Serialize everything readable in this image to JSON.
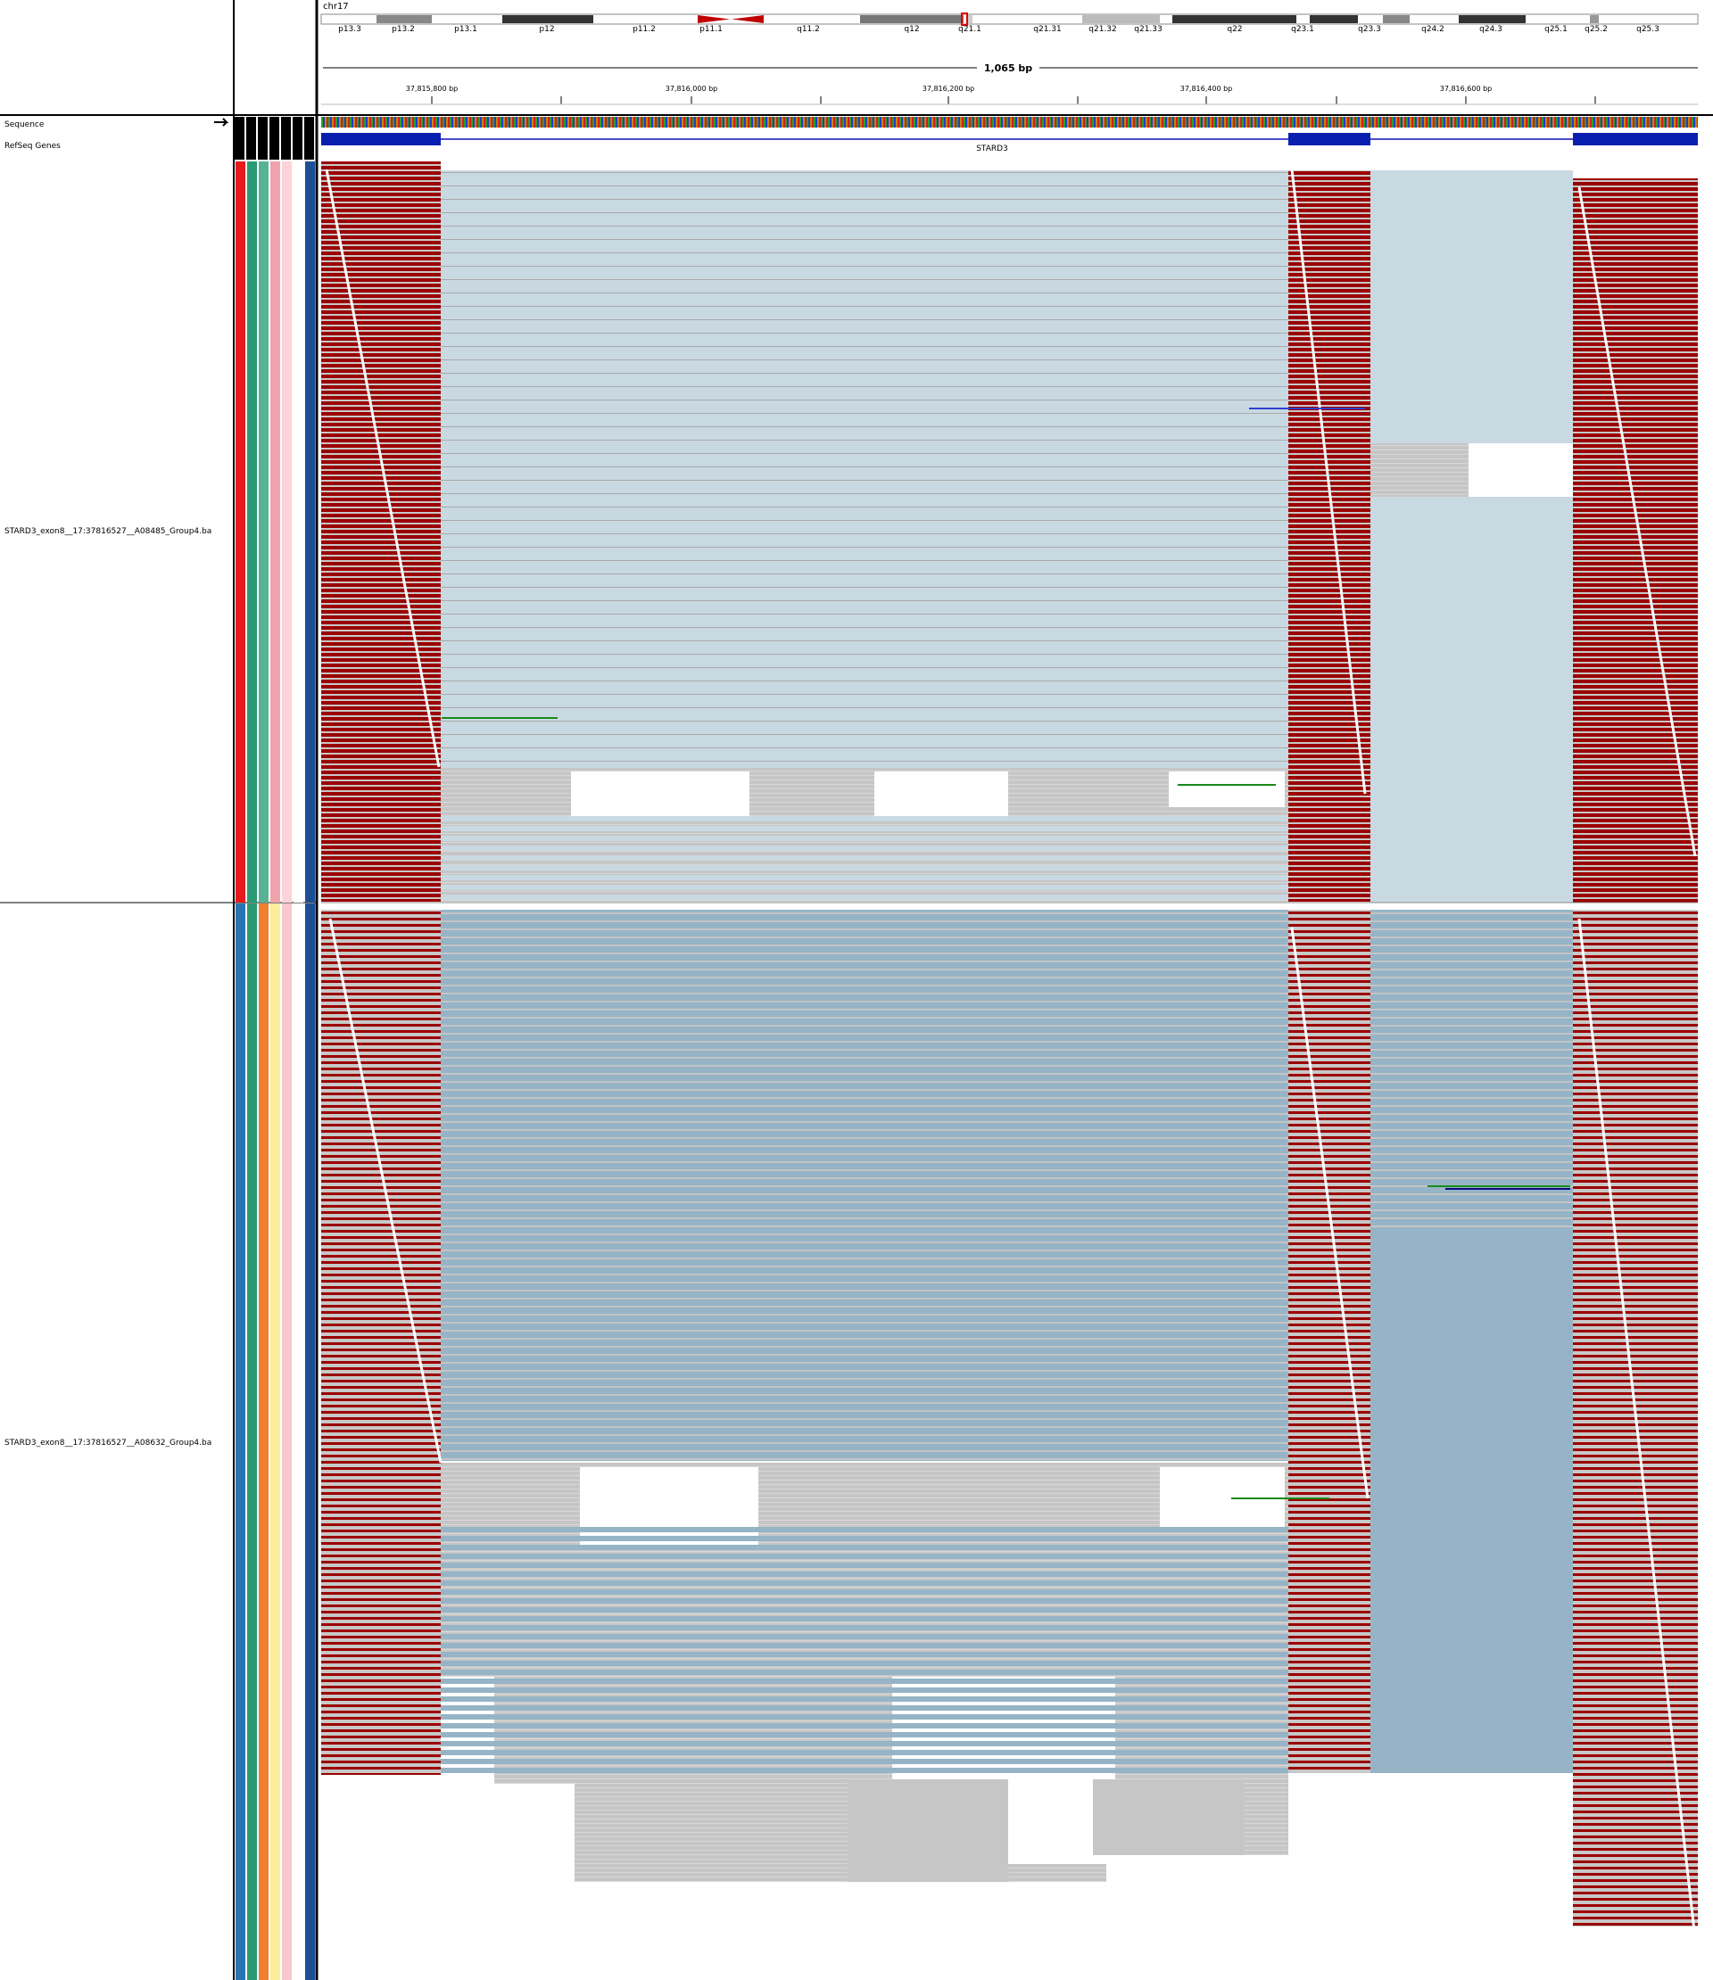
{
  "header": {
    "chromosome": "chr17",
    "cytobands": [
      "p13.3",
      "p13.2",
      "p13.1",
      "p12",
      "p11.2",
      "p11.1",
      "q11.2",
      "q12",
      "q21.1",
      "q21.31",
      "q21.32",
      "q21.33",
      "q22",
      "q23.1",
      "q23.3",
      "q24.2",
      "q24.3",
      "q25.1",
      "q25.2",
      "q25.3"
    ],
    "span": "1,065 bp",
    "ruler_ticks": [
      "37,815,800 bp",
      "37,816,000 bp",
      "37,816,200 bp",
      "37,816,400 bp",
      "37,816,600 bp"
    ]
  },
  "tracks": {
    "sequence": "Sequence",
    "refseq": "RefSeq Genes",
    "gene": "STARD3"
  },
  "samples": [
    "STARD3_exon8__17:37816527__A08485_Group4.ba",
    "STARD3_exon8__17:37816527__A08632_Group4.ba"
  ]
}
